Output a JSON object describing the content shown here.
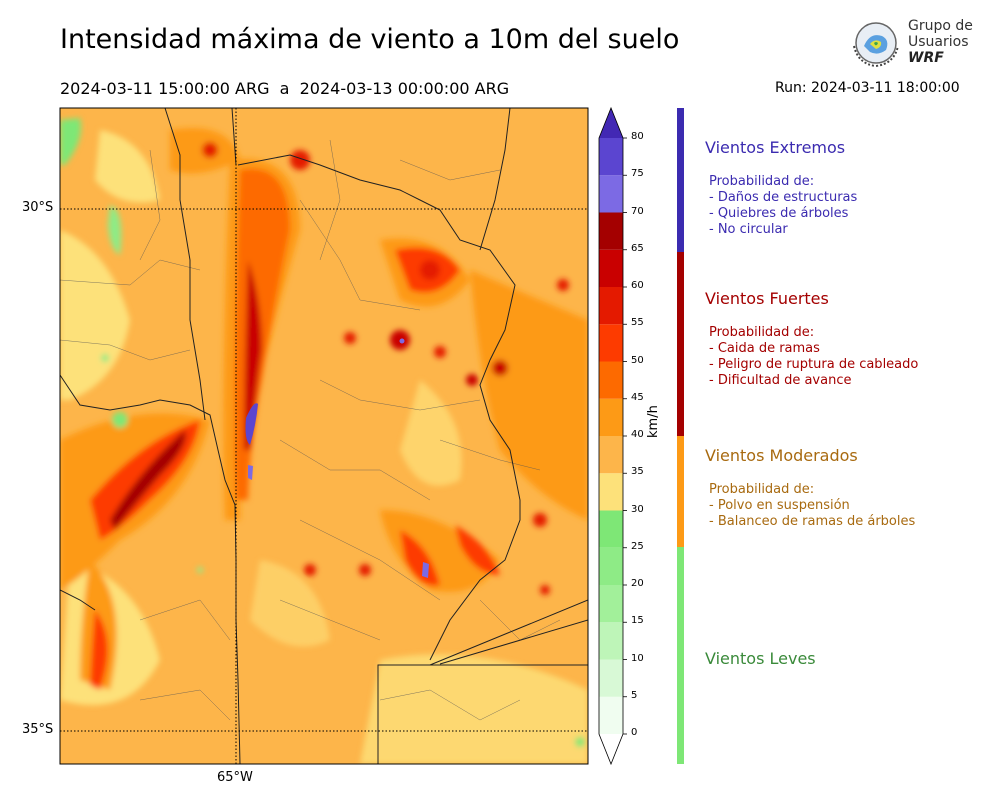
{
  "header": {
    "title": "Intensidad máxima de viento a 10m del suelo",
    "period": "2024-03-11 15:00:00 ARG  a  2024-03-13 00:00:00 ARG",
    "run": "Run: 2024-03-11 18:00:00"
  },
  "logo": {
    "line1": "Grupo de",
    "line2": "Usuarios",
    "line3": "WRF"
  },
  "map": {
    "lat_labels": [
      "30°S",
      "35°S"
    ],
    "lon_labels": [
      "65°W"
    ],
    "colors": {
      "land_base": "#fdb54a",
      "boundary": "#333333",
      "grid": "#000000"
    }
  },
  "colorbar": {
    "units": "km/h",
    "ticks": [
      "80",
      "75",
      "70",
      "65",
      "60",
      "55",
      "50",
      "45",
      "40",
      "35",
      "30",
      "25",
      "20",
      "15",
      "10",
      "5",
      "0"
    ],
    "levels": [
      0,
      5,
      10,
      15,
      20,
      25,
      30,
      35,
      40,
      45,
      50,
      55,
      60,
      65,
      70,
      75,
      80
    ],
    "colors": [
      "#f0fdf0",
      "#d8f9d6",
      "#bef5b8",
      "#a2f09a",
      "#8eeb86",
      "#7ee776",
      "#fde17a",
      "#fdb54a",
      "#fd9a16",
      "#fd6a00",
      "#fd3b00",
      "#e41a00",
      "#c90000",
      "#a40000",
      "#7c6ae4",
      "#5b45d0",
      "#4228b4"
    ]
  },
  "categories": [
    {
      "title": "Vientos Extremos",
      "color": "#3b2bb0",
      "lines": [
        "Probabilidad de:",
        "- Daños de estructuras",
        "- Quiebres de árboles",
        "- No circular"
      ]
    },
    {
      "title": "Vientos Fuertes",
      "color": "#a40000",
      "lines": [
        "Probabilidad de:",
        "- Caida de ramas",
        "- Peligro de ruptura de cableado",
        "- Dificultad de avance"
      ]
    },
    {
      "title": "Vientos Moderados",
      "color": "#a86a10",
      "lines": [
        "Probabilidad de:",
        "- Polvo en suspensión",
        "- Balanceo de ramas de árboles"
      ]
    },
    {
      "title": "Vientos Leves",
      "color": "#3a8a3a",
      "lines": []
    }
  ],
  "category_bar_colors": [
    "#3b2bb0",
    "#a40000",
    "#fd9a16",
    "#7ee776"
  ]
}
